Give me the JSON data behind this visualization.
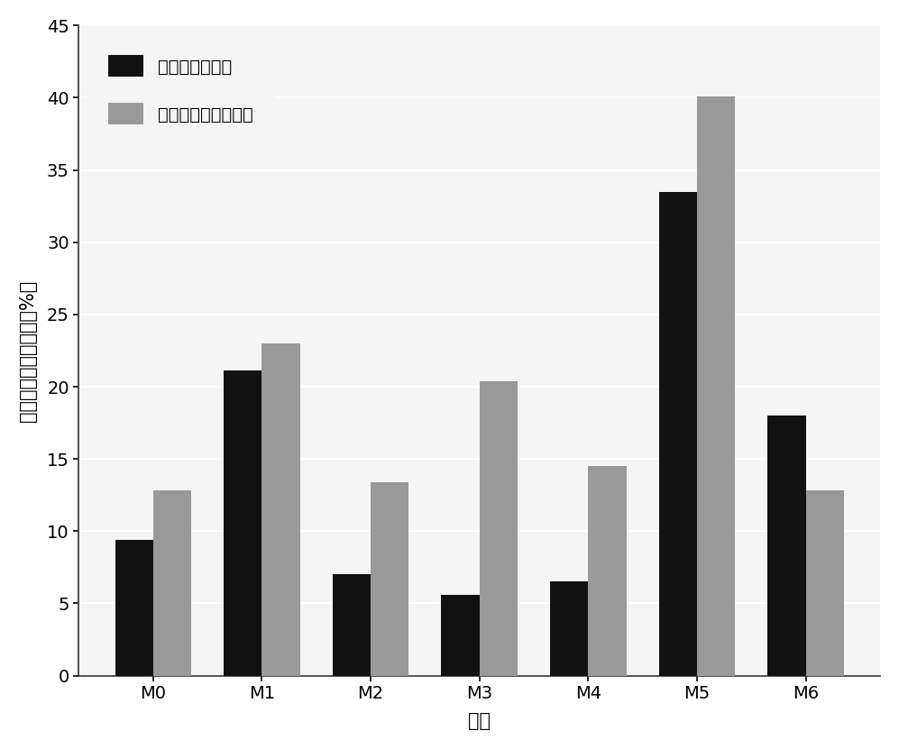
{
  "categories": [
    "M0",
    "M1",
    "M2",
    "M3",
    "M4",
    "M5",
    "M6"
  ],
  "series1_label": "二噌英类总浓度",
  "series2_label": "二噌英类总毒性当量",
  "series1_values": [
    9.4,
    21.1,
    7.0,
    5.6,
    6.5,
    33.5,
    18.0
  ],
  "series2_values": [
    12.8,
    23.0,
    13.4,
    20.4,
    14.5,
    40.1,
    12.8
  ],
  "series1_color": "#111111",
  "series2_color": "#999999",
  "xlabel": "模型",
  "ylabel": "平均绝对百分比误差（%）",
  "ylim": [
    0,
    45
  ],
  "yticks": [
    0,
    5,
    10,
    15,
    20,
    25,
    30,
    35,
    40,
    45
  ],
  "bar_width": 0.35,
  "background_color": "#ffffff",
  "plot_bg_color": "#f5f5f5",
  "grid_color": "#ffffff",
  "label_fontsize": 15,
  "tick_fontsize": 14,
  "legend_fontsize": 14
}
